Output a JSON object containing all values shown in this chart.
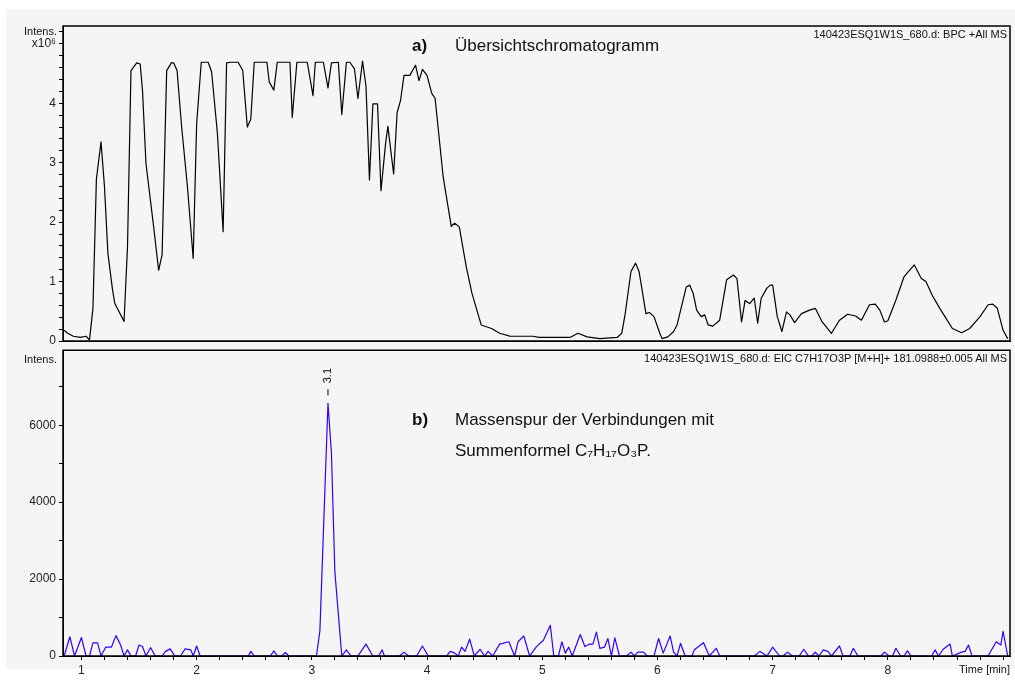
{
  "chart_data": [
    {
      "type": "line",
      "ylabel": "Intens.",
      "color": "#000000",
      "tick_labels": "y",
      "xlim": [
        0.84,
        9.06
      ],
      "ylim": [
        0,
        5.3
      ],
      "yticks": [
        0,
        {
          "value": 0.2,
          "label": null
        },
        {
          "value": 0.4,
          "label": null
        },
        {
          "value": 0.6,
          "label": null
        },
        {
          "value": 0.8,
          "label": null
        },
        1,
        {
          "value": 1.2,
          "label": null
        },
        {
          "value": 1.4,
          "label": null
        },
        {
          "value": 1.6,
          "label": null
        },
        {
          "value": 1.8,
          "label": null
        },
        2,
        {
          "value": 2.2,
          "label": null
        },
        {
          "value": 2.4,
          "label": null
        },
        {
          "value": 2.6,
          "label": null
        },
        {
          "value": 2.8,
          "label": null
        },
        3,
        {
          "value": 3.2,
          "label": null
        },
        {
          "value": 3.4,
          "label": null
        },
        {
          "value": 3.6,
          "label": null
        },
        {
          "value": 3.8,
          "label": null
        },
        4,
        {
          "value": 4.2,
          "label": null
        },
        {
          "value": 4.4,
          "label": null
        },
        {
          "value": 4.6,
          "label": null
        },
        {
          "value": 4.8,
          "label": null
        },
        {
          "value": 5,
          "label": "x10⁶"
        },
        {
          "value": 5.2,
          "label": null
        }
      ],
      "annotations": [
        "140423ESQ1W1S_680.d: BPC +All MS",
        "a) Übersichtschromatogramm"
      ],
      "x": [
        0.85,
        0.88,
        0.93,
        0.99,
        1.04,
        1.07,
        1.1,
        1.13,
        1.17,
        1.2,
        1.23,
        1.27,
        1.29,
        1.37,
        1.4,
        1.43,
        1.48,
        1.51,
        1.53,
        1.56,
        1.63,
        1.67,
        1.7,
        1.74,
        1.78,
        1.8,
        1.83,
        1.87,
        1.92,
        1.97,
        2.0,
        2.04,
        2.1,
        2.13,
        2.18,
        2.23,
        2.26,
        2.29,
        2.36,
        2.4,
        2.44,
        2.47,
        2.5,
        2.61,
        2.63,
        2.67,
        2.7,
        2.81,
        2.83,
        2.87,
        2.96,
        3.01,
        3.03,
        3.1,
        3.14,
        3.17,
        3.23,
        3.26,
        3.3,
        3.33,
        3.37,
        3.4,
        3.44,
        3.47,
        3.5,
        3.53,
        3.57,
        3.6,
        3.64,
        3.66,
        3.71,
        3.74,
        3.77,
        3.8,
        3.85,
        3.9,
        3.93,
        3.96,
        4.0,
        4.04,
        4.07,
        4.14,
        4.21,
        4.24,
        4.28,
        4.34,
        4.39,
        4.47,
        4.56,
        4.63,
        4.72,
        4.92,
        4.97,
        5.24,
        5.31,
        5.39,
        5.5,
        5.65,
        5.69,
        5.72,
        5.77,
        5.81,
        5.84,
        5.9,
        5.93,
        5.97,
        6.02,
        6.04,
        6.09,
        6.14,
        6.17,
        6.25,
        6.28,
        6.31,
        6.34,
        6.38,
        6.41,
        6.44,
        6.48,
        6.54,
        6.6,
        6.66,
        6.69,
        6.73,
        6.76,
        6.8,
        6.84,
        6.87,
        6.9,
        6.95,
        6.98,
        7.0,
        7.04,
        7.08,
        7.12,
        7.15,
        7.19,
        7.25,
        7.32,
        7.37,
        7.43,
        7.51,
        7.58,
        7.65,
        7.72,
        7.77,
        7.84,
        7.89,
        7.93,
        7.97,
        8.0,
        8.07,
        8.14,
        8.17,
        8.23,
        8.29,
        8.33,
        8.39,
        8.46,
        8.56,
        8.64,
        8.71,
        8.8,
        8.87,
        8.91,
        8.95,
        9.0,
        9.04
      ],
      "values": [
        0.18,
        0.13,
        0.08,
        0.06,
        0.08,
        0.02,
        0.55,
        2.73,
        3.35,
        2.6,
        1.47,
        0.86,
        0.63,
        0.33,
        1.59,
        4.55,
        4.68,
        4.66,
        4.22,
        2.99,
        1.87,
        1.19,
        1.45,
        4.55,
        4.68,
        4.68,
        4.55,
        3.6,
        2.6,
        1.39,
        3.65,
        4.69,
        4.69,
        4.53,
        3.5,
        1.84,
        4.68,
        4.69,
        4.69,
        4.55,
        3.6,
        3.73,
        4.69,
        4.69,
        4.36,
        4.22,
        4.69,
        4.69,
        3.76,
        4.69,
        4.69,
        4.13,
        4.69,
        4.69,
        4.26,
        4.68,
        4.69,
        3.81,
        4.69,
        4.69,
        4.58,
        4.08,
        4.71,
        4.29,
        2.71,
        3.99,
        3.99,
        2.53,
        3.32,
        3.61,
        2.81,
        3.84,
        4.05,
        4.47,
        4.47,
        4.64,
        4.38,
        4.57,
        4.47,
        4.17,
        4.08,
        2.76,
        1.93,
        1.98,
        1.92,
        1.25,
        0.8,
        0.27,
        0.21,
        0.13,
        0.08,
        0.08,
        0.06,
        0.06,
        0.13,
        0.07,
        0.04,
        0.06,
        0.13,
        0.46,
        1.17,
        1.31,
        1.17,
        0.46,
        0.48,
        0.41,
        0.13,
        0.04,
        0.07,
        0.16,
        0.27,
        0.91,
        0.94,
        0.8,
        0.52,
        0.41,
        0.44,
        0.27,
        0.25,
        0.35,
        1.03,
        1.11,
        1.05,
        0.32,
        0.68,
        0.63,
        0.72,
        0.3,
        0.72,
        0.89,
        0.94,
        0.94,
        0.41,
        0.16,
        0.49,
        0.44,
        0.31,
        0.46,
        0.52,
        0.55,
        0.32,
        0.13,
        0.35,
        0.45,
        0.42,
        0.35,
        0.61,
        0.62,
        0.52,
        0.32,
        0.34,
        0.69,
        1.08,
        1.15,
        1.28,
        1.05,
        1.0,
        0.75,
        0.52,
        0.21,
        0.14,
        0.21,
        0.41,
        0.61,
        0.62,
        0.55,
        0.18,
        0.04
      ]
    },
    {
      "type": "line",
      "ylabel": "Intens.",
      "xlabel": "Time [min]",
      "color": "#3300ff",
      "xlim": [
        0.84,
        9.06
      ],
      "ylim": [
        0,
        7950
      ],
      "xticks": [
        1,
        {
          "value": 1.2,
          "label": null
        },
        {
          "value": 1.4,
          "label": null
        },
        {
          "value": 1.6,
          "label": null
        },
        {
          "value": 1.8,
          "label": null
        },
        2,
        {
          "value": 2.2,
          "label": null
        },
        {
          "value": 2.4,
          "label": null
        },
        {
          "value": 2.6,
          "label": null
        },
        {
          "value": 2.8,
          "label": null
        },
        3,
        {
          "value": 3.2,
          "label": null
        },
        {
          "value": 3.4,
          "label": null
        },
        {
          "value": 3.6,
          "label": null
        },
        {
          "value": 3.8,
          "label": null
        },
        4,
        {
          "value": 4.2,
          "label": null
        },
        {
          "value": 4.4,
          "label": null
        },
        {
          "value": 4.6,
          "label": null
        },
        {
          "value": 4.8,
          "label": null
        },
        5,
        {
          "value": 5.2,
          "label": null
        },
        {
          "value": 5.4,
          "label": null
        },
        {
          "value": 5.6,
          "label": null
        },
        {
          "value": 5.8,
          "label": null
        },
        6,
        {
          "value": 6.2,
          "label": null
        },
        {
          "value": 6.4,
          "label": null
        },
        {
          "value": 6.6,
          "label": null
        },
        {
          "value": 6.8,
          "label": null
        },
        7,
        {
          "value": 7.2,
          "label": null
        },
        {
          "value": 7.4,
          "label": null
        },
        {
          "value": 7.6,
          "label": null
        },
        {
          "value": 7.8,
          "label": null
        },
        8,
        {
          "value": 8.2,
          "label": null
        },
        {
          "value": 8.4,
          "label": null
        },
        {
          "value": 8.6,
          "label": null
        },
        {
          "value": 8.8,
          "label": null
        },
        {
          "value": 9,
          "label": null
        }
      ],
      "yticks": [
        0,
        {
          "value": 1000,
          "label": null
        },
        2000,
        {
          "value": 3000,
          "label": null
        },
        4000,
        {
          "value": 5000,
          "label": null
        },
        6000,
        {
          "value": 7000,
          "label": null
        }
      ],
      "annotations": [
        "140423ESQ1W1S_680.d: EIC C7H17O3P [M+H]+ 181.0988±0.005 All MS",
        "b) Massenspur der Verbindungen mit Summenformel C₇H₁₇O₃P.",
        {
          "text": "3.1",
          "x": 3.14,
          "y": 6570
        }
      ],
      "x": [
        0.85,
        0.9,
        0.94,
        1.0,
        1.04,
        1.07,
        1.1,
        1.14,
        1.17,
        1.21,
        1.26,
        1.3,
        1.34,
        1.37,
        1.4,
        1.43,
        1.47,
        1.5,
        1.53,
        1.56,
        1.6,
        1.64,
        1.7,
        1.73,
        1.77,
        1.81,
        1.86,
        1.9,
        1.95,
        1.97,
        2.0,
        2.03,
        2.45,
        2.47,
        2.5,
        2.64,
        2.67,
        2.7,
        2.74,
        2.77,
        2.8,
        3.04,
        3.07,
        3.14,
        3.17,
        3.2,
        3.26,
        3.3,
        3.34,
        3.4,
        3.47,
        3.53,
        3.58,
        3.61,
        3.63,
        3.76,
        3.8,
        3.84,
        3.91,
        3.96,
        4.01,
        4.17,
        4.2,
        4.24,
        4.27,
        4.3,
        4.33,
        4.37,
        4.41,
        4.46,
        4.5,
        4.53,
        4.57,
        4.63,
        4.71,
        4.76,
        4.79,
        4.84,
        4.89,
        4.95,
        5.01,
        5.07,
        5.1,
        5.14,
        5.17,
        5.2,
        5.23,
        5.26,
        5.33,
        5.37,
        5.41,
        5.44,
        5.47,
        5.5,
        5.54,
        5.57,
        5.6,
        5.63,
        5.67,
        5.73,
        5.77,
        5.8,
        5.83,
        5.88,
        5.91,
        5.97,
        6.01,
        6.05,
        6.11,
        6.14,
        6.17,
        6.2,
        6.24,
        6.3,
        6.32,
        6.4,
        6.45,
        6.51,
        6.54,
        6.84,
        6.89,
        6.95,
        7.0,
        7.06,
        7.09,
        7.13,
        7.17,
        7.23,
        7.27,
        7.31,
        7.34,
        7.37,
        7.4,
        7.44,
        7.48,
        7.51,
        7.58,
        7.61,
        7.67,
        7.7,
        7.74,
        7.94,
        7.97,
        8.01,
        8.04,
        8.07,
        8.11,
        8.14,
        8.17,
        8.2,
        8.38,
        8.41,
        8.44,
        8.48,
        8.54,
        8.56,
        8.64,
        8.67,
        8.7,
        8.73,
        8.87,
        8.94,
        8.98,
        9.0,
        9.04
      ],
      "values": [
        0,
        500,
        0,
        480,
        0,
        0,
        340,
        340,
        0,
        230,
        230,
        530,
        285,
        0,
        160,
        0,
        0,
        285,
        245,
        0,
        220,
        0,
        0,
        120,
        185,
        0,
        0,
        185,
        160,
        0,
        260,
        0,
        0,
        120,
        0,
        0,
        135,
        0,
        0,
        90,
        0,
        0,
        660,
        6570,
        5280,
        2180,
        0,
        160,
        0,
        0,
        310,
        0,
        0,
        160,
        0,
        0,
        100,
        0,
        0,
        260,
        0,
        0,
        120,
        75,
        0,
        230,
        120,
        440,
        0,
        175,
        0,
        120,
        0,
        310,
        370,
        0,
        370,
        520,
        0,
        245,
        410,
        800,
        0,
        0,
        370,
        75,
        230,
        0,
        560,
        245,
        310,
        310,
        620,
        200,
        230,
        455,
        0,
        470,
        0,
        0,
        100,
        0,
        100,
        100,
        0,
        0,
        455,
        75,
        520,
        100,
        0,
        330,
        0,
        0,
        160,
        345,
        0,
        200,
        0,
        0,
        120,
        0,
        230,
        0,
        0,
        100,
        0,
        0,
        175,
        0,
        0,
        100,
        0,
        160,
        120,
        0,
        260,
        0,
        0,
        200,
        0,
        0,
        100,
        0,
        0,
        200,
        0,
        0,
        135,
        0,
        0,
        160,
        0,
        175,
        310,
        0,
        100,
        120,
        285,
        0,
        0,
        370,
        285,
        640,
        0
      ]
    }
  ]
}
